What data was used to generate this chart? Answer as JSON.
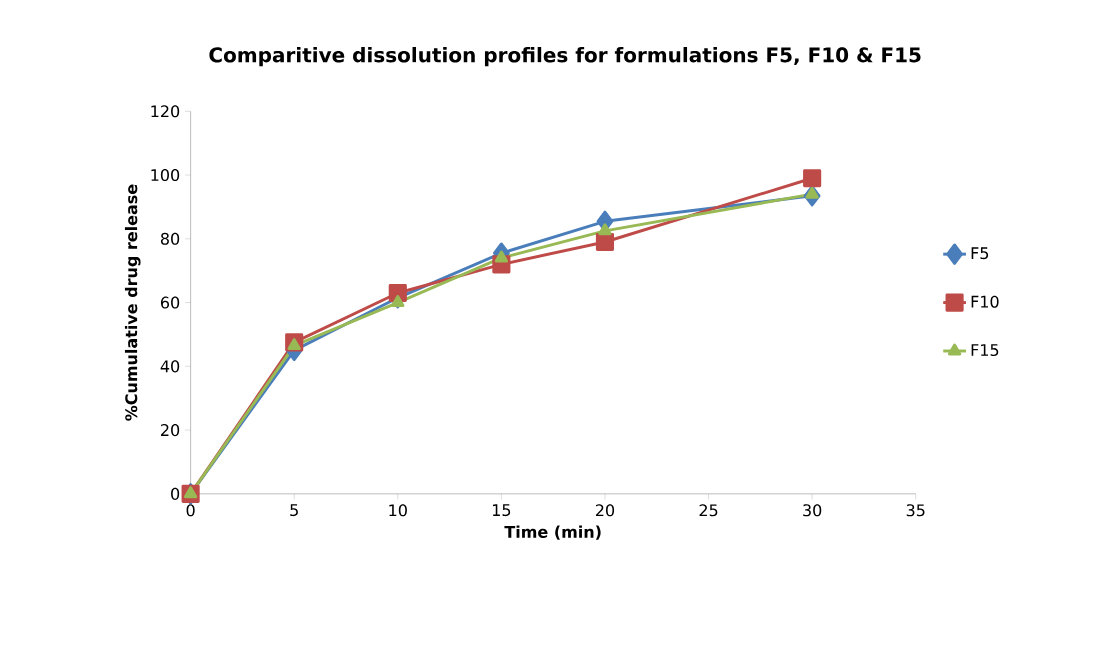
{
  "chart_data": {
    "type": "line",
    "title": "Comparitive dissolution profiles for formulations F5, F10 & F15",
    "xlabel": "Time (min)",
    "ylabel": "%Cumulative drug  release",
    "x": [
      0,
      5,
      10,
      15,
      20,
      30
    ],
    "series": [
      {
        "name": "F5",
        "color": "#4a7ebb",
        "marker": "diamond",
        "values": [
          0,
          45,
          61.5,
          75.5,
          85.5,
          93.5
        ]
      },
      {
        "name": "F10",
        "color": "#be4b48",
        "marker": "square",
        "values": [
          0,
          47.5,
          63,
          72,
          79,
          99
        ]
      },
      {
        "name": "F15",
        "color": "#98b954",
        "marker": "triangle",
        "values": [
          0,
          46.5,
          60,
          74,
          82.5,
          94
        ]
      }
    ],
    "xlim": [
      0,
      35
    ],
    "xticks": [
      0,
      5,
      10,
      15,
      20,
      25,
      30,
      35
    ],
    "ylim": [
      0,
      120
    ],
    "yticks": [
      0,
      20,
      40,
      60,
      80,
      100,
      120
    ],
    "grid": false,
    "legend": "right",
    "line_style": "solid"
  }
}
